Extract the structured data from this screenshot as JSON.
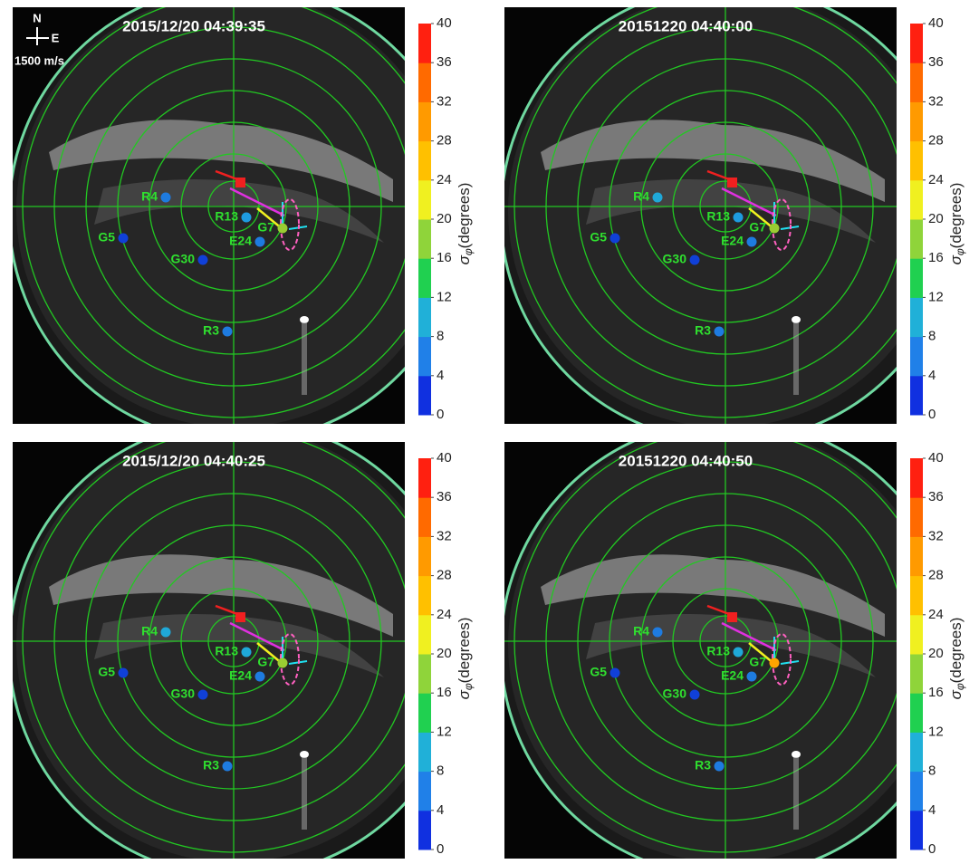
{
  "panels": [
    {
      "title": "2015/12/20 04:39:35",
      "station_colors": [
        "#1e7be0",
        "#1040d8",
        "#1040d8",
        "#1e9be0",
        "#1e7be0",
        "#9acd32",
        "#1e7be0"
      ]
    },
    {
      "title": "20151220 04:40:00",
      "station_colors": [
        "#1fa8d8",
        "#1040d8",
        "#1040d8",
        "#1e9be0",
        "#1e7be0",
        "#9acd32",
        "#1e7be0"
      ]
    },
    {
      "title": "2015/12/20 04:40:25",
      "station_colors": [
        "#1fa8d8",
        "#1040d8",
        "#1040d8",
        "#1fa8d8",
        "#1e7be0",
        "#9acd32",
        "#1e7be0"
      ]
    },
    {
      "title": "20151220 04:40:50",
      "station_colors": [
        "#1e7be0",
        "#1040d8",
        "#1040d8",
        "#1fa8d8",
        "#1e7be0",
        "#ffa500",
        "#1e7be0"
      ]
    }
  ],
  "stations": [
    "R4",
    "G5",
    "G30",
    "R13",
    "E24",
    "G7",
    "R3"
  ],
  "compass": {
    "north": "N",
    "east": "E",
    "scale": "1500 m/s"
  },
  "colorbar": {
    "symbol": "σ",
    "subscript": "φ",
    "unit": "(degrees)",
    "ticks": [
      0,
      4,
      8,
      12,
      16,
      20,
      24,
      28,
      32,
      36,
      40
    ],
    "colors": [
      "#1030e0",
      "#2080e8",
      "#20b0d8",
      "#20d050",
      "#8fd43a",
      "#f0f020",
      "#ffc000",
      "#ff9a00",
      "#ff6a00",
      "#ff2010"
    ]
  }
}
